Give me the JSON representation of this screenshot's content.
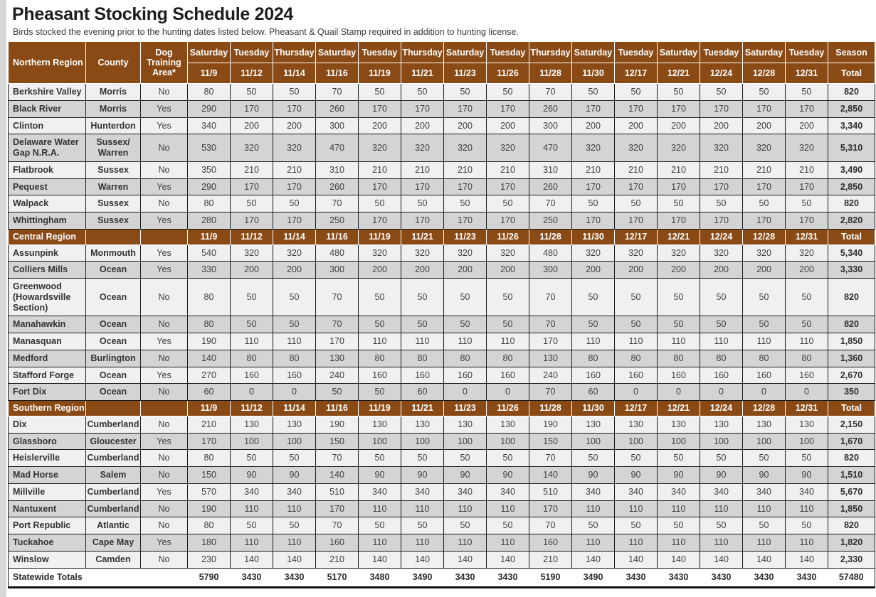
{
  "page": {
    "title": "Pheasant Stocking Schedule 2024",
    "subtitle": "Birds stocked the evening prior to the hunting dates listed below. Pheasant & Quail Stamp required in addition to hunting license."
  },
  "colors": {
    "header_brown": "#8a4a15",
    "row_light": "#f0f0f1",
    "row_dark": "#d3d4d6"
  },
  "table": {
    "corner_headers": {
      "region": "Northern Region",
      "county": "County",
      "dog": "Dog Training Area*"
    },
    "day_names": [
      "Saturday",
      "Tuesday",
      "Thursday",
      "Saturday",
      "Tuesday",
      "Thursday",
      "Saturday",
      "Tuesday",
      "Thursday",
      "Saturday",
      "Tuesday",
      "Saturday",
      "Tuesday",
      "Saturday",
      "Tuesday"
    ],
    "dates": [
      "11/9",
      "11/12",
      "11/14",
      "11/16",
      "11/19",
      "11/21",
      "11/23",
      "11/26",
      "11/28",
      "11/30",
      "12/17",
      "12/21",
      "12/24",
      "12/28",
      "12/31"
    ],
    "season_label": "Season",
    "total_label": "Total",
    "sections": [
      {
        "name": "Northern Region",
        "in_main_header": true,
        "rows": [
          {
            "area": "Berkshire Valley",
            "county": "Morris",
            "dog": "No",
            "values": [
              "80",
              "50",
              "50",
              "70",
              "50",
              "50",
              "50",
              "50",
              "70",
              "50",
              "50",
              "50",
              "50",
              "50",
              "50"
            ],
            "total": "820"
          },
          {
            "area": "Black River",
            "county": "Morris",
            "dog": "Yes",
            "values": [
              "290",
              "170",
              "170",
              "260",
              "170",
              "170",
              "170",
              "170",
              "260",
              "170",
              "170",
              "170",
              "170",
              "170",
              "170"
            ],
            "total": "2,850"
          },
          {
            "area": "Clinton",
            "county": "Hunterdon",
            "dog": "Yes",
            "values": [
              "340",
              "200",
              "200",
              "300",
              "200",
              "200",
              "200",
              "200",
              "300",
              "200",
              "200",
              "200",
              "200",
              "200",
              "200"
            ],
            "total": "3,340"
          },
          {
            "area": "Delaware Water Gap N.R.A.",
            "county": "Sussex/ Warren",
            "dog": "No",
            "values": [
              "530",
              "320",
              "320",
              "470",
              "320",
              "320",
              "320",
              "320",
              "470",
              "320",
              "320",
              "320",
              "320",
              "320",
              "320"
            ],
            "total": "5,310"
          },
          {
            "area": "Flatbrook",
            "county": "Sussex",
            "dog": "No",
            "values": [
              "350",
              "210",
              "210",
              "310",
              "210",
              "210",
              "210",
              "210",
              "310",
              "210",
              "210",
              "210",
              "210",
              "210",
              "210"
            ],
            "total": "3,490"
          },
          {
            "area": "Pequest",
            "county": "Warren",
            "dog": "Yes",
            "values": [
              "290",
              "170",
              "170",
              "260",
              "170",
              "170",
              "170",
              "170",
              "260",
              "170",
              "170",
              "170",
              "170",
              "170",
              "170"
            ],
            "total": "2,850"
          },
          {
            "area": "Walpack",
            "county": "Sussex",
            "dog": "No",
            "values": [
              "80",
              "50",
              "50",
              "70",
              "50",
              "50",
              "50",
              "50",
              "70",
              "50",
              "50",
              "50",
              "50",
              "50",
              "50"
            ],
            "total": "820"
          },
          {
            "area": "Whittingham",
            "county": "Sussex",
            "dog": "Yes",
            "values": [
              "280",
              "170",
              "170",
              "250",
              "170",
              "170",
              "170",
              "170",
              "250",
              "170",
              "170",
              "170",
              "170",
              "170",
              "170"
            ],
            "total": "2,820"
          }
        ]
      },
      {
        "name": "Central Region",
        "in_main_header": false,
        "rows": [
          {
            "area": "Assunpink",
            "county": "Monmouth",
            "dog": "Yes",
            "values": [
              "540",
              "320",
              "320",
              "480",
              "320",
              "320",
              "320",
              "320",
              "480",
              "320",
              "320",
              "320",
              "320",
              "320",
              "320"
            ],
            "total": "5,340"
          },
          {
            "area": "Colliers Mills",
            "county": "Ocean",
            "dog": "Yes",
            "values": [
              "330",
              "200",
              "200",
              "300",
              "200",
              "200",
              "200",
              "200",
              "300",
              "200",
              "200",
              "200",
              "200",
              "200",
              "200"
            ],
            "total": "3,330"
          },
          {
            "area": "Greenwood (Howardsville Section)",
            "county": "Ocean",
            "dog": "No",
            "values": [
              "80",
              "50",
              "50",
              "70",
              "50",
              "50",
              "50",
              "50",
              "70",
              "50",
              "50",
              "50",
              "50",
              "50",
              "50"
            ],
            "total": "820"
          },
          {
            "area": "Manahawkin",
            "county": "Ocean",
            "dog": "No",
            "values": [
              "80",
              "50",
              "50",
              "70",
              "50",
              "50",
              "50",
              "50",
              "70",
              "50",
              "50",
              "50",
              "50",
              "50",
              "50"
            ],
            "total": "820"
          },
          {
            "area": "Manasquan",
            "county": "Ocean",
            "dog": "Yes",
            "values": [
              "190",
              "110",
              "110",
              "170",
              "110",
              "110",
              "110",
              "110",
              "170",
              "110",
              "110",
              "110",
              "110",
              "110",
              "110"
            ],
            "total": "1,850"
          },
          {
            "area": "Medford",
            "county": "Burlington",
            "dog": "No",
            "values": [
              "140",
              "80",
              "80",
              "130",
              "80",
              "80",
              "80",
              "80",
              "130",
              "80",
              "80",
              "80",
              "80",
              "80",
              "80"
            ],
            "total": "1,360"
          },
          {
            "area": "Stafford Forge",
            "county": "Ocean",
            "dog": "Yes",
            "values": [
              "270",
              "160",
              "160",
              "240",
              "160",
              "160",
              "160",
              "160",
              "240",
              "160",
              "160",
              "160",
              "160",
              "160",
              "160"
            ],
            "total": "2,670"
          },
          {
            "area": "Fort Dix",
            "county": "Ocean",
            "dog": "No",
            "values": [
              "60",
              "0",
              "0",
              "50",
              "50",
              "60",
              "0",
              "0",
              "70",
              "60",
              "0",
              "0",
              "0",
              "0",
              "0"
            ],
            "total": "350"
          }
        ]
      },
      {
        "name": "Southern Region",
        "in_main_header": false,
        "rows": [
          {
            "area": "Dix",
            "county": "Cumberland",
            "dog": "No",
            "values": [
              "210",
              "130",
              "130",
              "190",
              "130",
              "130",
              "130",
              "130",
              "190",
              "130",
              "130",
              "130",
              "130",
              "130",
              "130"
            ],
            "total": "2,150"
          },
          {
            "area": "Glassboro",
            "county": "Gloucester",
            "dog": "Yes",
            "values": [
              "170",
              "100",
              "100",
              "150",
              "100",
              "100",
              "100",
              "100",
              "150",
              "100",
              "100",
              "100",
              "100",
              "100",
              "100"
            ],
            "total": "1,670"
          },
          {
            "area": "Heislerville",
            "county": "Cumberland",
            "dog": "No",
            "values": [
              "80",
              "50",
              "50",
              "70",
              "50",
              "50",
              "50",
              "50",
              "70",
              "50",
              "50",
              "50",
              "50",
              "50",
              "50"
            ],
            "total": "820"
          },
          {
            "area": "Mad Horse",
            "county": "Salem",
            "dog": "No",
            "values": [
              "150",
              "90",
              "90",
              "140",
              "90",
              "90",
              "90",
              "90",
              "140",
              "90",
              "90",
              "90",
              "90",
              "90",
              "90"
            ],
            "total": "1,510"
          },
          {
            "area": "Millville",
            "county": "Cumberland",
            "dog": "Yes",
            "values": [
              "570",
              "340",
              "340",
              "510",
              "340",
              "340",
              "340",
              "340",
              "510",
              "340",
              "340",
              "340",
              "340",
              "340",
              "340"
            ],
            "total": "5,670"
          },
          {
            "area": "Nantuxent",
            "county": "Cumberland",
            "dog": "No",
            "values": [
              "190",
              "110",
              "110",
              "170",
              "110",
              "110",
              "110",
              "110",
              "170",
              "110",
              "110",
              "110",
              "110",
              "110",
              "110"
            ],
            "total": "1,850"
          },
          {
            "area": "Port Republic",
            "county": "Atlantic",
            "dog": "No",
            "values": [
              "80",
              "50",
              "50",
              "70",
              "50",
              "50",
              "50",
              "50",
              "70",
              "50",
              "50",
              "50",
              "50",
              "50",
              "50"
            ],
            "total": "820"
          },
          {
            "area": "Tuckahoe",
            "county": "Cape May",
            "dog": "Yes",
            "values": [
              "180",
              "110",
              "110",
              "160",
              "110",
              "110",
              "110",
              "110",
              "160",
              "110",
              "110",
              "110",
              "110",
              "110",
              "110"
            ],
            "total": "1,820"
          },
          {
            "area": "Winslow",
            "county": "Camden",
            "dog": "No",
            "values": [
              "230",
              "140",
              "140",
              "210",
              "140",
              "140",
              "140",
              "140",
              "210",
              "140",
              "140",
              "140",
              "140",
              "140",
              "140"
            ],
            "total": "2,330"
          }
        ]
      }
    ],
    "statewide": {
      "label": "Statewide Totals",
      "values": [
        "5790",
        "3430",
        "3430",
        "5170",
        "3480",
        "3490",
        "3430",
        "3430",
        "5190",
        "3490",
        "3430",
        "3430",
        "3430",
        "3430",
        "3430"
      ],
      "total": "57480"
    }
  }
}
